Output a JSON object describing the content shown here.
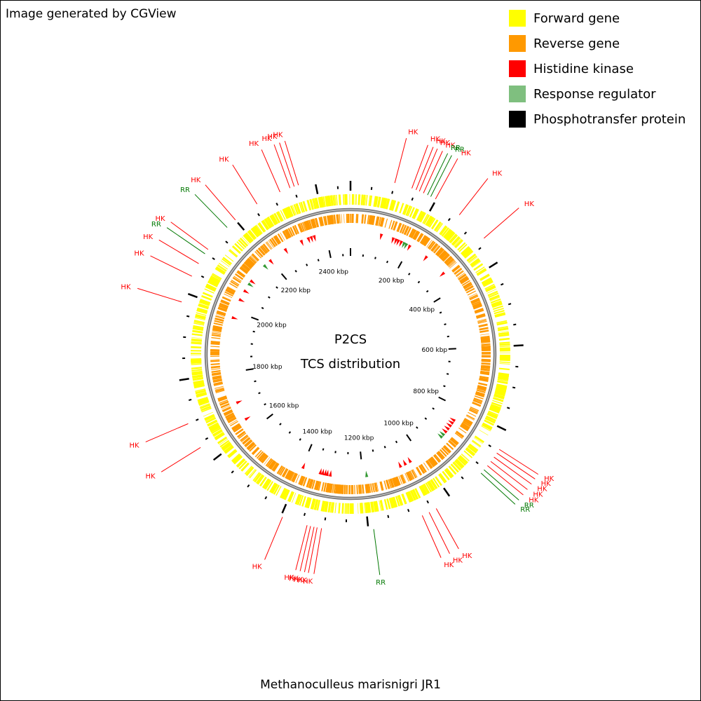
{
  "credit": "Image generated by CGView",
  "legend": [
    {
      "label": "Forward gene",
      "color": "#ffff00"
    },
    {
      "label": "Reverse gene",
      "color": "#ff9900"
    },
    {
      "label": "Histidine kinase",
      "color": "#ff0000"
    },
    {
      "label": "Response regulator",
      "color": "#7fbf7f"
    },
    {
      "label": "Phosphotransfer protein",
      "color": "#000000"
    }
  ],
  "center": {
    "line1": "P2CS",
    "line2": "TCS distribution"
  },
  "organism": "Methanoculleus marisnigri JR1",
  "genome_kbp": 2480,
  "tick_labels": [
    "200 kbp",
    "400 kbp",
    "600 kbp",
    "800 kbp",
    "1000 kbp",
    "1200 kbp",
    "1400 kbp",
    "1600 kbp",
    "1800 kbp",
    "2000 kbp",
    "2200 kbp",
    "2400 kbp"
  ],
  "features": [
    {
      "label": "HK",
      "type": "hk",
      "kbp": 100
    },
    {
      "label": "HK",
      "type": "hk",
      "kbp": 140
    },
    {
      "label": "HK",
      "type": "hk",
      "kbp": 150
    },
    {
      "label": "HK",
      "type": "hk",
      "kbp": 158
    },
    {
      "label": "HK",
      "type": "hk",
      "kbp": 168
    },
    {
      "label": "RR",
      "type": "rr",
      "kbp": 178
    },
    {
      "label": "RR",
      "type": "rr",
      "kbp": 186
    },
    {
      "label": "HK",
      "type": "hk",
      "kbp": 198
    },
    {
      "label": "HK",
      "type": "hk",
      "kbp": 262
    },
    {
      "label": "HK",
      "type": "hk",
      "kbp": 338
    },
    {
      "label": "HK",
      "type": "hk",
      "kbp": 845
    },
    {
      "label": "HK",
      "type": "hk",
      "kbp": 855
    },
    {
      "label": "HK",
      "type": "hk",
      "kbp": 866
    },
    {
      "label": "HK",
      "type": "hk",
      "kbp": 878
    },
    {
      "label": "HK",
      "type": "hk",
      "kbp": 890
    },
    {
      "label": "RR",
      "type": "rr",
      "kbp": 902
    },
    {
      "label": "RR",
      "type": "rr",
      "kbp": 912
    },
    {
      "label": "HK",
      "type": "hk",
      "kbp": 1040
    },
    {
      "label": "HK",
      "type": "hk",
      "kbp": 1058
    },
    {
      "label": "HK",
      "type": "hk",
      "kbp": 1075
    },
    {
      "label": "RR",
      "type": "rr",
      "kbp": 1188
    },
    {
      "label": "HK",
      "type": "hk",
      "kbp": 1305
    },
    {
      "label": "HK",
      "type": "hk",
      "kbp": 1315
    },
    {
      "label": "HK",
      "type": "hk",
      "kbp": 1322
    },
    {
      "label": "HK",
      "type": "hk",
      "kbp": 1330
    },
    {
      "label": "HK",
      "type": "hk",
      "kbp": 1338
    },
    {
      "label": "HK",
      "type": "hk",
      "kbp": 1396
    },
    {
      "label": "HK",
      "type": "hk",
      "kbp": 1640
    },
    {
      "label": "HK",
      "type": "hk",
      "kbp": 1700
    },
    {
      "label": "HK",
      "type": "hk",
      "kbp": 1978
    },
    {
      "label": "HK",
      "type": "hk",
      "kbp": 2040
    },
    {
      "label": "HK",
      "type": "hk",
      "kbp": 2072
    },
    {
      "label": "RR",
      "type": "rr",
      "kbp": 2098
    },
    {
      "label": "HK",
      "type": "hk",
      "kbp": 2110
    },
    {
      "label": "RR",
      "type": "rr",
      "kbp": 2175
    },
    {
      "label": "HK",
      "type": "hk",
      "kbp": 2200
    },
    {
      "label": "HK",
      "type": "hk",
      "kbp": 2260
    },
    {
      "label": "HK",
      "type": "hk",
      "kbp": 2318
    },
    {
      "label": "HK",
      "type": "hk",
      "kbp": 2342
    },
    {
      "label": "HK",
      "type": "hk",
      "kbp": 2352
    },
    {
      "label": "HK",
      "type": "hk",
      "kbp": 2362
    }
  ],
  "colors": {
    "hk": "#ff0000",
    "rr": "#007700",
    "rr_marker": "#339933",
    "forward": "#ffff00",
    "reverse": "#ff9900",
    "backbone": "#777777"
  }
}
